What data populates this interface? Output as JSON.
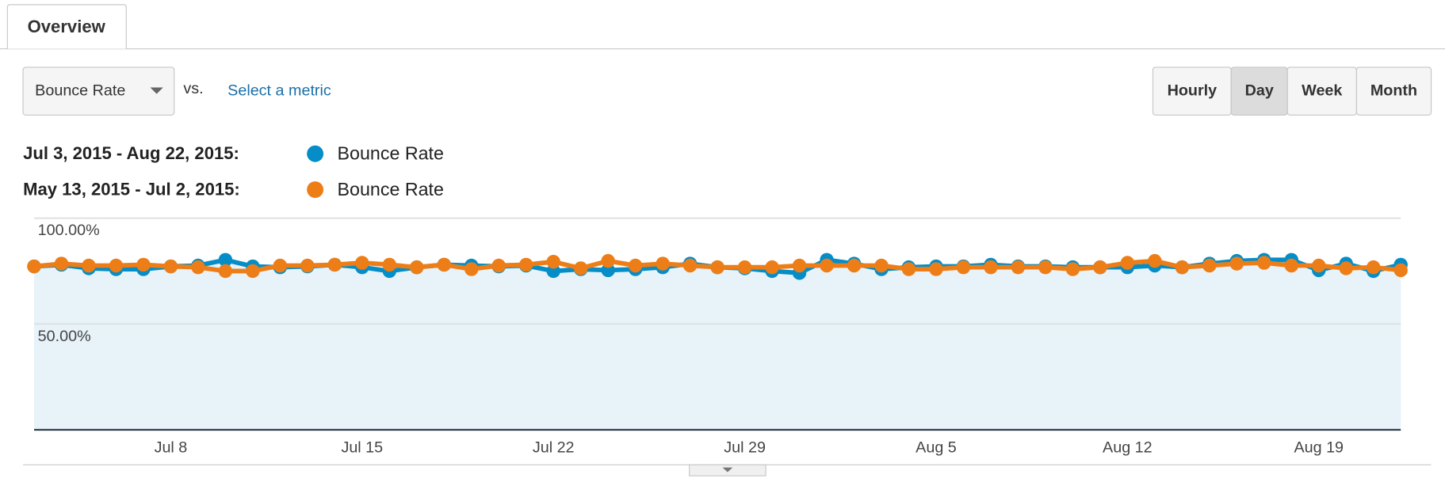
{
  "tab": "Overview",
  "metric_select": "Bounce Rate",
  "vs": "vs.",
  "select_metric": "Select a metric",
  "buttons": [
    "Hourly",
    "Day",
    "Week",
    "Month"
  ],
  "active_button": 1,
  "chart_data": {
    "type": "line",
    "categories": [
      null,
      null,
      null,
      null,
      null,
      "Jul 8",
      null,
      null,
      null,
      null,
      null,
      null,
      "Jul 15",
      null,
      null,
      null,
      null,
      null,
      null,
      "Jul 22",
      null,
      null,
      null,
      null,
      null,
      null,
      "Jul 29",
      null,
      null,
      null,
      null,
      null,
      null,
      "Aug 5",
      null,
      null,
      null,
      null,
      null,
      null,
      "Aug 12",
      null,
      null,
      null,
      null,
      null,
      null,
      "Aug 19",
      null,
      null,
      null
    ],
    "series": [
      {
        "name": "Bounce Rate",
        "period": "Jul 3, 2015 - Aug 22, 2015:",
        "color": "#058dc7",
        "area": true,
        "values": [
          77.2,
          78,
          76.3,
          75.9,
          75.9,
          77.2,
          77.6,
          80.3,
          77.2,
          76.8,
          77.2,
          78,
          76.8,
          75,
          76.8,
          78,
          77.6,
          77.2,
          77.6,
          75,
          75.9,
          75.4,
          75.9,
          76.8,
          78.5,
          76.8,
          76.3,
          75,
          74.1,
          80.3,
          78.5,
          75.9,
          76.8,
          77.2,
          77.2,
          78,
          77.2,
          77.2,
          76.8,
          76.8,
          76.8,
          77.6,
          76.8,
          78.5,
          79.8,
          80.3,
          80.3,
          75.4,
          78.5,
          75,
          78
        ]
      },
      {
        "name": "Bounce Rate",
        "period": "May 13, 2015 - Jul 2, 2015:",
        "color": "#ed7e17",
        "area": false,
        "values": [
          77.2,
          78.5,
          77.6,
          77.6,
          78,
          77.2,
          76.8,
          75,
          75,
          77.6,
          77.6,
          78,
          78.9,
          78,
          76.8,
          78,
          75.9,
          77.6,
          78,
          79.4,
          76.3,
          79.8,
          77.6,
          78.5,
          77.6,
          76.8,
          76.8,
          76.8,
          77.6,
          77.6,
          77.6,
          77.6,
          75.9,
          75.9,
          76.8,
          76.8,
          76.8,
          76.8,
          75.9,
          76.8,
          78.9,
          79.8,
          76.8,
          77.6,
          78.5,
          78.9,
          77.6,
          77.6,
          76.3,
          76.8,
          75.4
        ]
      }
    ],
    "ylim": [
      0,
      100
    ],
    "yticks": [
      {
        "value": 100,
        "label": "100.00%"
      },
      {
        "value": 50,
        "label": "50.00%"
      }
    ],
    "grid": true
  }
}
